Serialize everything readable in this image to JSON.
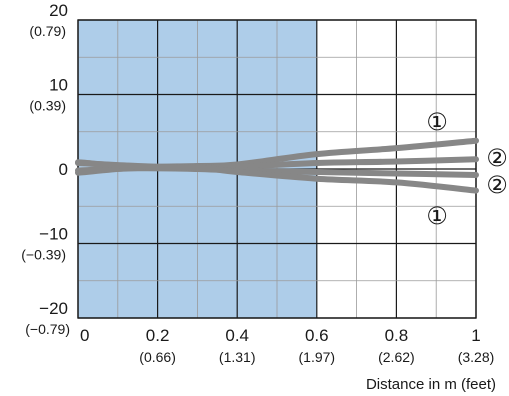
{
  "chart_data": {
    "type": "line",
    "xlabel": "Distance in m (feet)",
    "ylabel": "",
    "xlim": [
      0,
      1
    ],
    "ylim": [
      -20,
      20
    ],
    "grid": true,
    "x_ticks": [
      {
        "value": 0,
        "label": "0",
        "sublabel": ""
      },
      {
        "value": 0.2,
        "label": "0.2",
        "sublabel": "(0.66)"
      },
      {
        "value": 0.4,
        "label": "0.4",
        "sublabel": "(1.31)"
      },
      {
        "value": 0.6,
        "label": "0.6",
        "sublabel": "(1.97)"
      },
      {
        "value": 0.8,
        "label": "0.8",
        "sublabel": "(2.62)"
      },
      {
        "value": 1,
        "label": "1",
        "sublabel": "(3.28)"
      }
    ],
    "y_ticks": [
      {
        "value": 20,
        "label": "20",
        "sublabel": "(0.79)"
      },
      {
        "value": 10,
        "label": "10",
        "sublabel": "(0.39)"
      },
      {
        "value": 0,
        "label": "0",
        "sublabel": ""
      },
      {
        "value": -10,
        "label": "−10",
        "sublabel": "(−0.39)"
      },
      {
        "value": -20,
        "label": "−20",
        "sublabel": "(−0.79)"
      }
    ],
    "shaded_region": {
      "x": [
        0,
        0.6
      ],
      "color": "#aecde9"
    },
    "line_color": "#878787",
    "series": [
      {
        "marker": "①",
        "x": [
          0,
          0.15,
          0.3,
          0.4,
          0.6,
          0.8,
          1
        ],
        "y": [
          -0.5,
          0.2,
          0.4,
          0.6,
          2.0,
          2.8,
          3.8
        ]
      },
      {
        "marker": "②",
        "x": [
          0,
          0.15,
          0.3,
          0.4,
          0.6,
          0.8,
          1
        ],
        "y": [
          0.8,
          0.4,
          0.2,
          0.3,
          0.8,
          1.0,
          1.3
        ]
      },
      {
        "marker": "②",
        "x": [
          0,
          0.15,
          0.3,
          0.4,
          0.6,
          0.8,
          1
        ],
        "y": [
          -0.2,
          0.1,
          0.0,
          -0.2,
          -0.4,
          -0.6,
          -0.8
        ]
      },
      {
        "marker": "①",
        "x": [
          0,
          0.15,
          0.3,
          0.4,
          0.6,
          0.8,
          1
        ],
        "y": [
          0.9,
          0.3,
          0.2,
          -0.4,
          -1.3,
          -1.8,
          -2.9
        ]
      }
    ],
    "markers": [
      {
        "text": "①",
        "series_index": 0
      },
      {
        "text": "②",
        "series_index": 1
      },
      {
        "text": "②",
        "series_index": 2
      },
      {
        "text": "①",
        "series_index": 3
      }
    ]
  }
}
